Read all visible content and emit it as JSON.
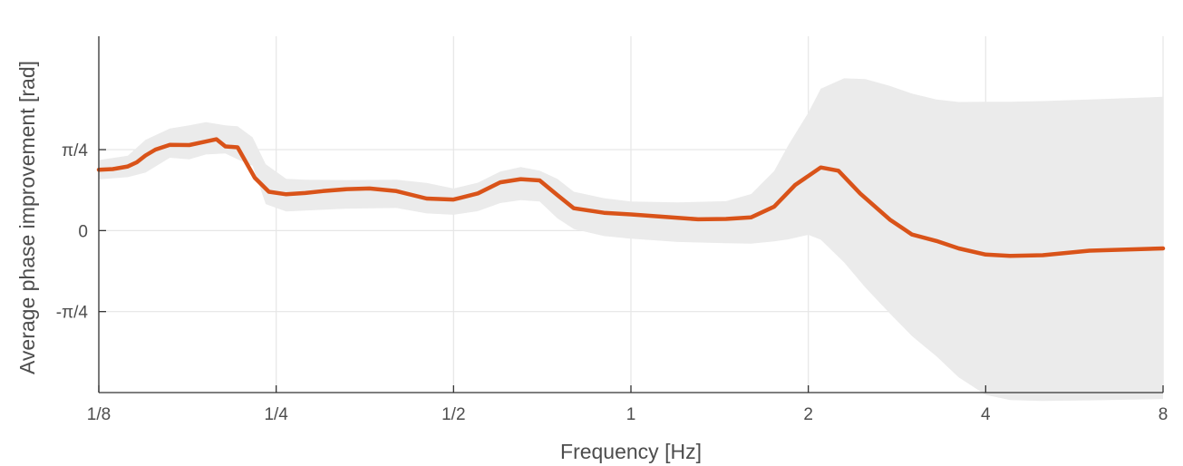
{
  "chart_data": {
    "type": "line",
    "title": "",
    "xlabel": "Frequency [Hz]",
    "ylabel": "Average phase improvement [rad]",
    "xscale": "log2",
    "xlim": [
      0.125,
      8
    ],
    "ylim": [
      -0.5,
      0.6
    ],
    "grid": true,
    "x_ticks": [
      {
        "value": 0.125,
        "label": "1/8"
      },
      {
        "value": 0.25,
        "label": "1/4"
      },
      {
        "value": 0.5,
        "label": "1/2"
      },
      {
        "value": 1,
        "label": "1"
      },
      {
        "value": 2,
        "label": "2"
      },
      {
        "value": 4,
        "label": "4"
      },
      {
        "value": 8,
        "label": "8"
      }
    ],
    "y_ticks": [
      {
        "value": -0.25,
        "label": "-π/4"
      },
      {
        "value": 0,
        "label": "0"
      },
      {
        "value": 0.25,
        "label": "π/4"
      }
    ],
    "colors": {
      "line": "#d95319",
      "band": "#ebebeb",
      "grid": "#e6e6e6",
      "axis": "#333333",
      "text": "#4d4d4d"
    },
    "series": [
      {
        "style": "line",
        "x": [
          0.125,
          0.132,
          0.14,
          0.145,
          0.15,
          0.156,
          0.165,
          0.178,
          0.19,
          0.198,
          0.205,
          0.215,
          0.23,
          0.243,
          0.26,
          0.28,
          0.3,
          0.33,
          0.36,
          0.4,
          0.45,
          0.5,
          0.55,
          0.6,
          0.65,
          0.7,
          0.75,
          0.8,
          0.9,
          1.0,
          1.15,
          1.3,
          1.45,
          1.6,
          1.75,
          1.9,
          2.1,
          2.25,
          2.45,
          2.75,
          3.0,
          3.3,
          3.6,
          4.0,
          4.4,
          5.0,
          6.0,
          8.0
        ],
        "y": [
          0.188,
          0.19,
          0.198,
          0.211,
          0.232,
          0.25,
          0.265,
          0.264,
          0.275,
          0.282,
          0.26,
          0.257,
          0.163,
          0.12,
          0.112,
          0.116,
          0.122,
          0.128,
          0.13,
          0.122,
          0.099,
          0.096,
          0.115,
          0.149,
          0.159,
          0.155,
          0.11,
          0.069,
          0.055,
          0.05,
          0.042,
          0.035,
          0.036,
          0.041,
          0.074,
          0.141,
          0.195,
          0.185,
          0.114,
          0.034,
          -0.012,
          -0.032,
          -0.055,
          -0.074,
          -0.078,
          -0.076,
          -0.062,
          -0.055
        ]
      },
      {
        "style": "band",
        "x": [
          0.125,
          0.14,
          0.15,
          0.165,
          0.178,
          0.19,
          0.205,
          0.215,
          0.228,
          0.24,
          0.26,
          0.28,
          0.33,
          0.4,
          0.45,
          0.5,
          0.55,
          0.6,
          0.65,
          0.7,
          0.75,
          0.8,
          0.9,
          1.0,
          1.2,
          1.45,
          1.6,
          1.75,
          1.85,
          2.0,
          2.1,
          2.3,
          2.5,
          2.75,
          3.0,
          3.3,
          3.6,
          4.0,
          4.4,
          5.0,
          6.0,
          8.0
        ],
        "upper": [
          0.218,
          0.231,
          0.28,
          0.315,
          0.325,
          0.335,
          0.325,
          0.322,
          0.288,
          0.205,
          0.16,
          0.157,
          0.156,
          0.157,
          0.147,
          0.13,
          0.148,
          0.182,
          0.196,
          0.185,
          0.16,
          0.12,
          0.1,
          0.09,
          0.087,
          0.091,
          0.113,
          0.184,
          0.264,
          0.364,
          0.438,
          0.47,
          0.468,
          0.447,
          0.423,
          0.405,
          0.397,
          0.398,
          0.398,
          0.4,
          0.405,
          0.413
        ],
        "lower": [
          0.158,
          0.165,
          0.179,
          0.225,
          0.22,
          0.235,
          0.238,
          0.22,
          0.2,
          0.082,
          0.059,
          0.062,
          0.068,
          0.07,
          0.053,
          0.049,
          0.06,
          0.085,
          0.094,
          0.09,
          0.038,
          0.005,
          -0.017,
          -0.025,
          -0.035,
          -0.039,
          -0.04,
          -0.033,
          -0.027,
          -0.013,
          -0.028,
          -0.098,
          -0.176,
          -0.256,
          -0.326,
          -0.388,
          -0.453,
          -0.507,
          -0.523,
          -0.526,
          -0.524,
          -0.52
        ]
      }
    ]
  }
}
